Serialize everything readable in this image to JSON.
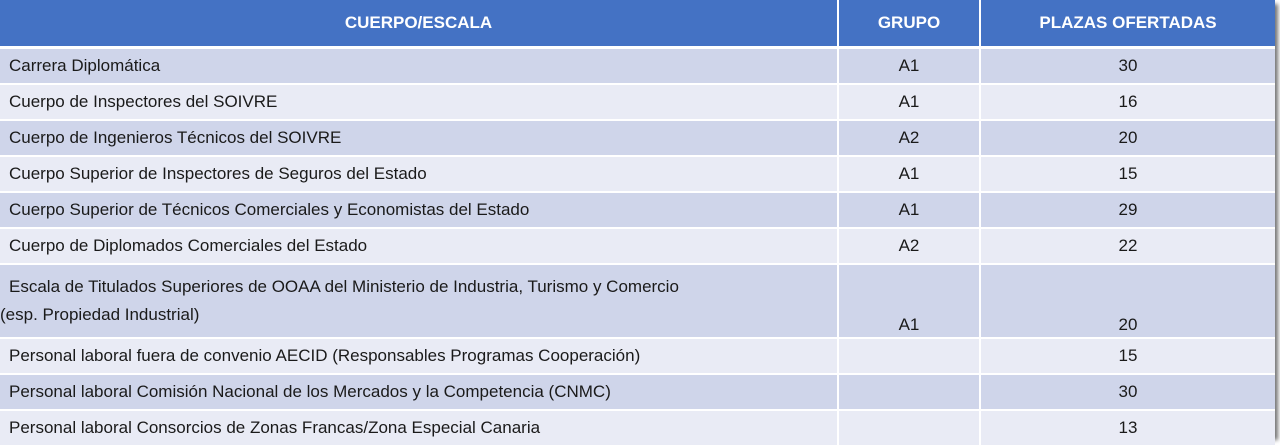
{
  "table": {
    "headers": {
      "cuerpo": "CUERPO/ESCALA",
      "grupo": "GRUPO",
      "plazas": "PLAZAS OFERTADAS"
    },
    "rows": [
      {
        "cuerpo": "Carrera Diplomática",
        "grupo": "A1",
        "plazas": "30"
      },
      {
        "cuerpo": "Cuerpo de Inspectores del SOIVRE",
        "grupo": "A1",
        "plazas": "16"
      },
      {
        "cuerpo": "Cuerpo de Ingenieros Técnicos del SOIVRE",
        "grupo": "A2",
        "plazas": "20"
      },
      {
        "cuerpo": "Cuerpo Superior de Inspectores de Seguros del Estado",
        "grupo": "A1",
        "plazas": "15"
      },
      {
        "cuerpo": "Cuerpo Superior de Técnicos Comerciales y Economistas del Estado",
        "grupo": "A1",
        "plazas": "29"
      },
      {
        "cuerpo": "Cuerpo de Diplomados Comerciales del Estado",
        "grupo": "A2",
        "plazas": "22"
      },
      {
        "cuerpo_line1": "Escala de Titulados Superiores de OOAA del Ministerio de Industria, Turismo y Comercio",
        "cuerpo_line2": "(esp. Propiedad Industrial)",
        "grupo": "A1",
        "plazas": "20"
      },
      {
        "cuerpo": "Personal laboral fuera de convenio AECID (Responsables Programas Cooperación)",
        "grupo": "",
        "plazas": "15"
      },
      {
        "cuerpo": "Personal laboral Comisión Nacional de los Mercados y la Competencia (CNMC)",
        "grupo": "",
        "plazas": "30"
      },
      {
        "cuerpo": "Personal laboral Consorcios de Zonas Francas/Zona Especial Canaria",
        "grupo": "",
        "plazas": "13"
      }
    ]
  }
}
